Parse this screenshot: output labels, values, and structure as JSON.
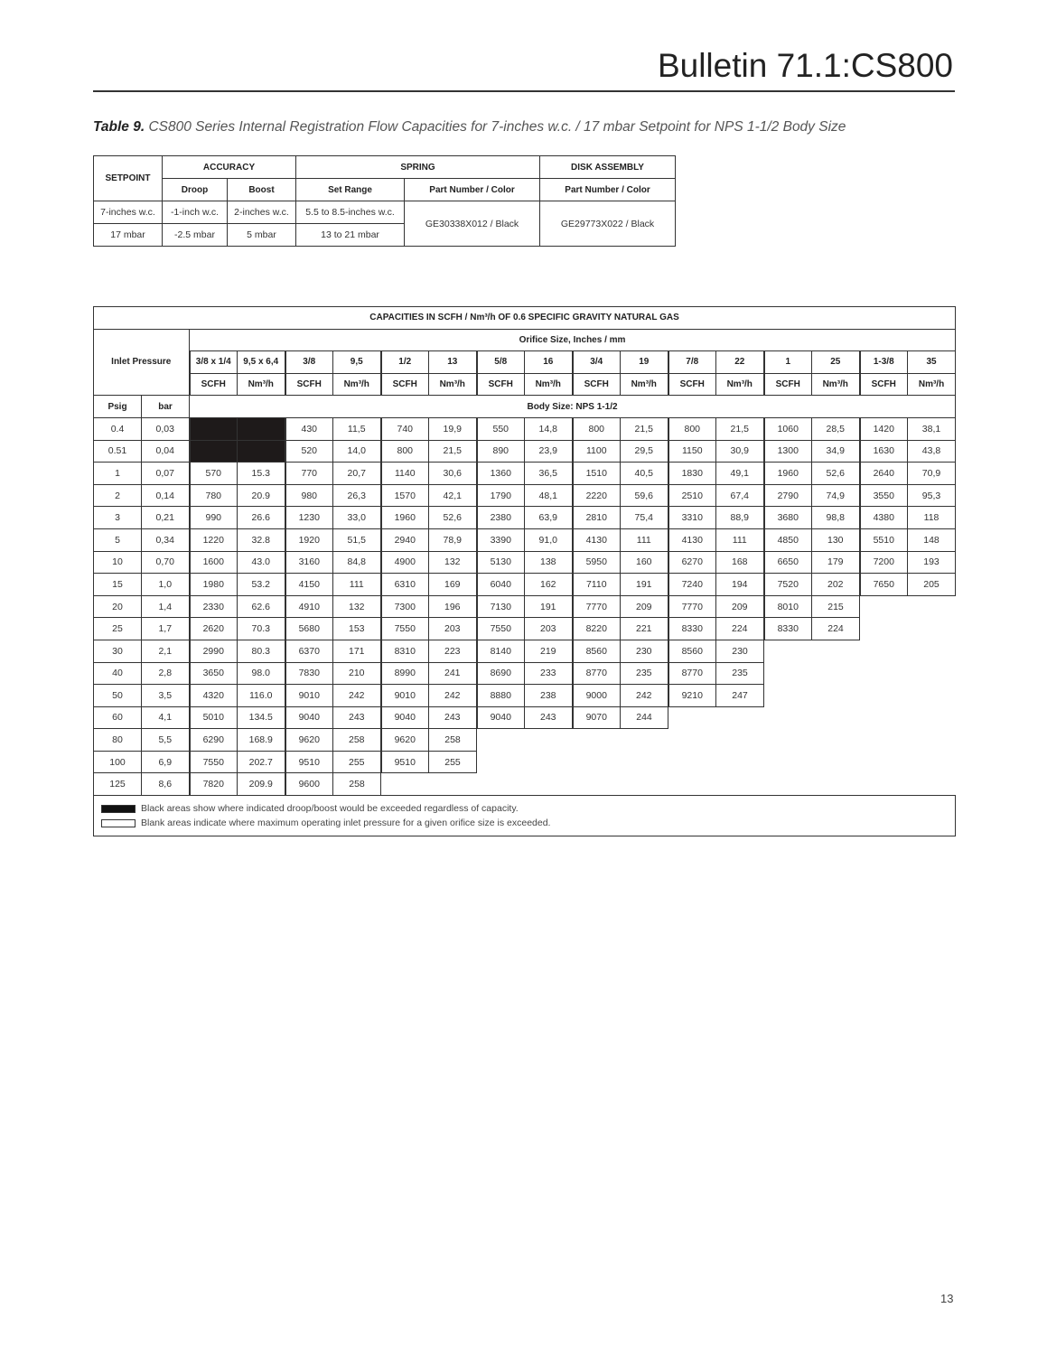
{
  "header": {
    "title": "Bulletin 71.1:CS800"
  },
  "caption": {
    "label": "Table 9.",
    "text": "CS800 Series Internal Registration Flow Capacities for 7-inches w.c. / 17 mbar Setpoint for NPS 1-1/2 Body Size"
  },
  "spec_table": {
    "setpoint": "SETPOINT",
    "accuracy": "ACCURACY",
    "spring": "SPRING",
    "disk": "DISK ASSEMBLY",
    "droop": "Droop",
    "boost": "Boost",
    "set_range": "Set Range",
    "spring_part": "Part Number / Color",
    "disk_part": "Part Number / Color",
    "row1": {
      "setpoint": "7-inches w.c.",
      "droop": "-1-inch w.c.",
      "boost": "2-inches w.c.",
      "range": "5.5 to 8.5-inches w.c."
    },
    "row2": {
      "setpoint": "17 mbar",
      "droop": "-2.5 mbar",
      "boost": "5 mbar",
      "range": "13 to 21 mbar"
    },
    "spring_part_value": "GE30338X012 / Black",
    "disk_part_value": "GE29773X022 / Black"
  },
  "capacity_table": {
    "title": "CAPACITIES IN SCFH / Nm³/h OF 0.6 SPECIFIC GRAVITY NATURAL GAS",
    "orifice_header": "Orifice Size, Inches / mm",
    "inlet_header": "Inlet Pressure",
    "orifice_sizes": [
      "3/8 x 1/4",
      "9,5 x 6,4",
      "3/8",
      "9,5",
      "1/2",
      "13",
      "5/8",
      "16",
      "3/4",
      "19",
      "7/8",
      "22",
      "1",
      "25",
      "1-3/8",
      "35"
    ],
    "units": [
      "SCFH",
      "Nm³/h",
      "SCFH",
      "Nm³/h",
      "SCFH",
      "Nm³/h",
      "SCFH",
      "Nm³/h",
      "SCFH",
      "Nm³/h",
      "SCFH",
      "Nm³/h",
      "SCFH",
      "Nm³/h",
      "SCFH",
      "Nm³/h"
    ],
    "psig": "Psig",
    "bar": "bar",
    "body_size": "Body Size: NPS 1-1/2",
    "rows": [
      {
        "psig": "0.4",
        "bar": "0,03",
        "values": [
          null,
          null,
          "430",
          "11,5",
          "740",
          "19,9",
          "550",
          "14,8",
          "800",
          "21,5",
          "800",
          "21,5",
          "1060",
          "28,5",
          "1420",
          "38,1"
        ]
      },
      {
        "psig": "0.51",
        "bar": "0,04",
        "values": [
          null,
          null,
          "520",
          "14,0",
          "800",
          "21,5",
          "890",
          "23,9",
          "1100",
          "29,5",
          "1150",
          "30,9",
          "1300",
          "34,9",
          "1630",
          "43,8"
        ]
      },
      {
        "psig": "1",
        "bar": "0,07",
        "values": [
          "570",
          "15.3",
          "770",
          "20,7",
          "1140",
          "30,6",
          "1360",
          "36,5",
          "1510",
          "40,5",
          "1830",
          "49,1",
          "1960",
          "52,6",
          "2640",
          "70,9"
        ]
      },
      {
        "psig": "2",
        "bar": "0,14",
        "values": [
          "780",
          "20.9",
          "980",
          "26,3",
          "1570",
          "42,1",
          "1790",
          "48,1",
          "2220",
          "59,6",
          "2510",
          "67,4",
          "2790",
          "74,9",
          "3550",
          "95,3"
        ]
      },
      {
        "psig": "3",
        "bar": "0,21",
        "values": [
          "990",
          "26.6",
          "1230",
          "33,0",
          "1960",
          "52,6",
          "2380",
          "63,9",
          "2810",
          "75,4",
          "3310",
          "88,9",
          "3680",
          "98,8",
          "4380",
          "118"
        ]
      },
      {
        "psig": "5",
        "bar": "0,34",
        "values": [
          "1220",
          "32.8",
          "1920",
          "51,5",
          "2940",
          "78,9",
          "3390",
          "91,0",
          "4130",
          "111",
          "4130",
          "111",
          "4850",
          "130",
          "5510",
          "148"
        ]
      },
      {
        "psig": "10",
        "bar": "0,70",
        "values": [
          "1600",
          "43.0",
          "3160",
          "84,8",
          "4900",
          "132",
          "5130",
          "138",
          "5950",
          "160",
          "6270",
          "168",
          "6650",
          "179",
          "7200",
          "193"
        ]
      },
      {
        "psig": "15",
        "bar": "1,0",
        "values": [
          "1980",
          "53.2",
          "4150",
          "111",
          "6310",
          "169",
          "6040",
          "162",
          "7110",
          "191",
          "7240",
          "194",
          "7520",
          "202",
          "7650",
          "205"
        ]
      },
      {
        "psig": "20",
        "bar": "1,4",
        "values": [
          "2330",
          "62.6",
          "4910",
          "132",
          "7300",
          "196",
          "7130",
          "191",
          "7770",
          "209",
          "7770",
          "209",
          "8010",
          "215"
        ]
      },
      {
        "psig": "25",
        "bar": "1,7",
        "values": [
          "2620",
          "70.3",
          "5680",
          "153",
          "7550",
          "203",
          "7550",
          "203",
          "8220",
          "221",
          "8330",
          "224",
          "8330",
          "224"
        ]
      },
      {
        "psig": "30",
        "bar": "2,1",
        "values": [
          "2990",
          "80.3",
          "6370",
          "171",
          "8310",
          "223",
          "8140",
          "219",
          "8560",
          "230",
          "8560",
          "230"
        ]
      },
      {
        "psig": "40",
        "bar": "2,8",
        "values": [
          "3650",
          "98.0",
          "7830",
          "210",
          "8990",
          "241",
          "8690",
          "233",
          "8770",
          "235",
          "8770",
          "235"
        ]
      },
      {
        "psig": "50",
        "bar": "3,5",
        "values": [
          "4320",
          "116.0",
          "9010",
          "242",
          "9010",
          "242",
          "8880",
          "238",
          "9000",
          "242",
          "9210",
          "247"
        ]
      },
      {
        "psig": "60",
        "bar": "4,1",
        "values": [
          "5010",
          "134.5",
          "9040",
          "243",
          "9040",
          "243",
          "9040",
          "243",
          "9070",
          "244"
        ]
      },
      {
        "psig": "80",
        "bar": "5,5",
        "values": [
          "6290",
          "168.9",
          "9620",
          "258",
          "9620",
          "258"
        ]
      },
      {
        "psig": "100",
        "bar": "6,9",
        "values": [
          "7550",
          "202.7",
          "9510",
          "255",
          "9510",
          "255"
        ]
      },
      {
        "psig": "125",
        "bar": "8,6",
        "values": [
          "7820",
          "209.9",
          "9600",
          "258"
        ]
      }
    ],
    "legend": {
      "black": "Black areas show where indicated droop/boost would be exceeded regardless of capacity.",
      "blank": "Blank areas indicate where maximum operating inlet pressure for a given orifice size is exceeded."
    }
  },
  "page_number": "13"
}
